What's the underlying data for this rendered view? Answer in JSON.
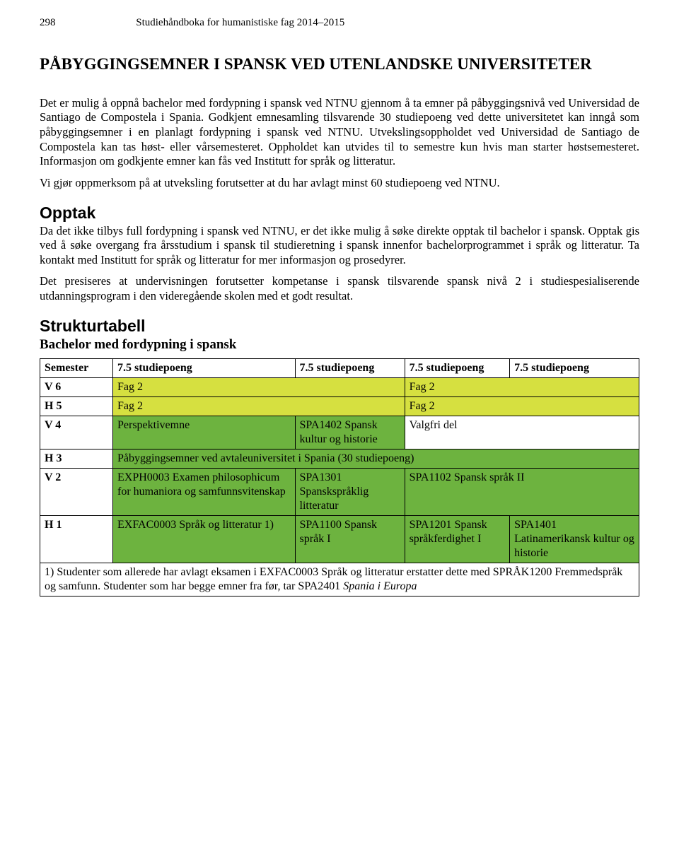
{
  "header": {
    "page_number": "298",
    "book_title": "Studiehåndboka for humanistiske fag 2014–2015"
  },
  "title": "PÅBYGGINGSEMNER I SPANSK VED UTENLANDSKE UNIVERSITETER",
  "para1": "Det er mulig å oppnå bachelor med fordypning i spansk ved NTNU gjennom å ta emner på påbyggingsnivå ved Universidad de Santiago de Compostela i Spania. Godkjent emnesamling tilsvarende 30 studiepoeng ved dette universitetet kan inngå som påbyggingsemner i en planlagt fordypning i spansk ved NTNU. Utvekslingsoppholdet ved Universidad de Santiago de Compostela kan tas høst- eller vårsemesteret. Oppholdet kan utvides til to semestre kun hvis man starter høstsemesteret. Informasjon om godkjente emner kan fås ved Institutt for språk og litteratur.",
  "para2": "Vi gjør oppmerksom på at utveksling forutsetter at du har avlagt minst 60 studiepoeng ved NTNU.",
  "opptak": {
    "heading": "Opptak",
    "p1": "Da det ikke tilbys full fordypning i spansk ved NTNU, er det ikke mulig å søke direkte opptak til bachelor i spansk. Opptak gis ved å søke overgang fra årsstudium i spansk til studieretning i spansk innenfor bachelorprogrammet i språk og litteratur. Ta kontakt med Institutt for språk og litteratur for mer informasjon og prosedyrer.",
    "p2": "Det presiseres at undervisningen forutsetter kompetanse i spansk tilsvarende spansk nivå 2 i studiespesialiserende utdanningsprogram i den videregående skolen med et godt resultat."
  },
  "struktur": {
    "heading": "Strukturtabell",
    "subheading": "Bachelor med fordypning i spansk",
    "colors": {
      "yellow": "#d6e040",
      "green": "#6db33f",
      "border": "#000000",
      "background": "#ffffff",
      "text": "#000000"
    },
    "columns": [
      "Semester",
      "7.5 studiepoeng",
      "7.5 studiepoeng",
      "7.5 studiepoeng",
      "7.5 studiepoeng"
    ],
    "rows": {
      "v6": {
        "sem": "V 6",
        "c1": "Fag 2",
        "c2": "Fag 2"
      },
      "h5": {
        "sem": "H 5",
        "c1": "Fag 2",
        "c2": "Fag 2"
      },
      "v4": {
        "sem": "V 4",
        "c1": "Perspektivemne",
        "c2": "SPA1402 Spansk kultur og historie",
        "c3": "Valgfri del"
      },
      "h3": {
        "sem": "H 3",
        "c1": "Påbyggingsemner ved avtaleuniversitet i Spania (30 studiepoeng)"
      },
      "v2": {
        "sem": "V 2",
        "c1": "EXPH0003 Examen philosophicum for humaniora og samfunnsvitenskap",
        "c2": "SPA1301 Spanskspråklig litteratur",
        "c3": "SPA1102 Spansk språk II"
      },
      "h1": {
        "sem": "H 1",
        "c1": "EXFAC0003 Språk og litteratur 1)",
        "c2": "SPA1100 Spansk språk I",
        "c3": "SPA1201 Spansk språkferdighet I",
        "c4": "SPA1401 Latinamerikansk kultur og historie"
      }
    },
    "footnote_part1": "1) Studenter som allerede har avlagt eksamen i EXFAC0003 Språk og litteratur erstatter dette med SPRÅK1200 Fremmedspråk og samfunn. Studenter som har begge emner fra før, tar SPA2401 ",
    "footnote_italic": "Spania i Europa"
  }
}
